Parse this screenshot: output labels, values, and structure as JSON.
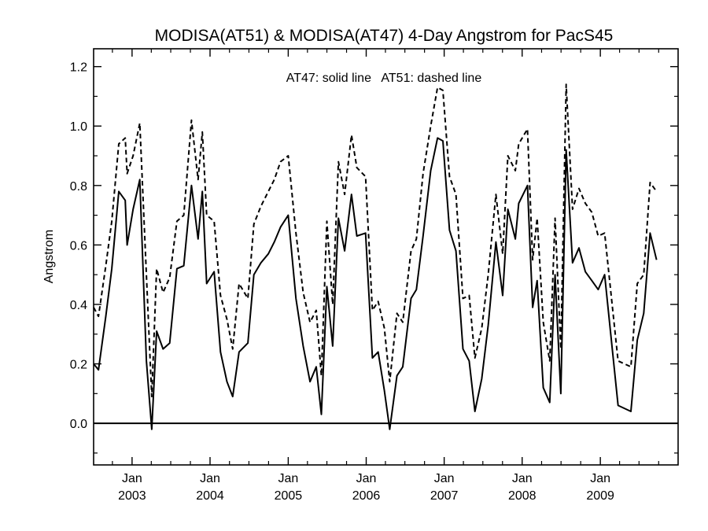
{
  "chart_data": {
    "type": "line",
    "title": "MODISA(AT51) & MODISA(AT47) 4-Day Angstrom for PacS45",
    "annotation": "AT47: solid line   AT51: dashed line",
    "xlabel": "",
    "ylabel": "Angstrom",
    "xlim": [
      "2002-07-05",
      "2009-12-31"
    ],
    "ylim": [
      -0.14,
      1.26
    ],
    "y_ticks": [
      0.0,
      0.2,
      0.4,
      0.6,
      0.8,
      1.0,
      1.2
    ],
    "y_tick_labels": [
      "0.0",
      "0.2",
      "0.4",
      "0.6",
      "0.8",
      "1.0",
      "1.2"
    ],
    "x_ticks": [
      {
        "date": "2003-01-01",
        "month": "Jan",
        "year": "2003"
      },
      {
        "date": "2004-01-01",
        "month": "Jan",
        "year": "2004"
      },
      {
        "date": "2005-01-01",
        "month": "Jan",
        "year": "2005"
      },
      {
        "date": "2006-01-01",
        "month": "Jan",
        "year": "2006"
      },
      {
        "date": "2007-01-01",
        "month": "Jan",
        "year": "2007"
      },
      {
        "date": "2008-01-01",
        "month": "Jan",
        "year": "2008"
      },
      {
        "date": "2009-01-01",
        "month": "Jan",
        "year": "2009"
      }
    ],
    "reference_line": 0.0,
    "grid": false,
    "series": [
      {
        "name": "AT47",
        "style": "solid",
        "color": "#000000",
        "points": [
          [
            "2002-07-05",
            0.2
          ],
          [
            "2002-07-28",
            0.18
          ],
          [
            "2002-08-31",
            0.36
          ],
          [
            "2002-09-28",
            0.52
          ],
          [
            "2002-10-31",
            0.78
          ],
          [
            "2002-11-30",
            0.75
          ],
          [
            "2002-12-09",
            0.6
          ],
          [
            "2003-01-06",
            0.72
          ],
          [
            "2003-02-06",
            0.82
          ],
          [
            "2003-03-09",
            0.21
          ],
          [
            "2003-04-03",
            -0.02
          ],
          [
            "2003-04-26",
            0.31
          ],
          [
            "2003-05-26",
            0.25
          ],
          [
            "2003-06-26",
            0.27
          ],
          [
            "2003-07-30",
            0.52
          ],
          [
            "2003-08-31",
            0.53
          ],
          [
            "2003-10-06",
            0.8
          ],
          [
            "2003-11-06",
            0.62
          ],
          [
            "2003-11-26",
            0.78
          ],
          [
            "2003-12-16",
            0.47
          ],
          [
            "2004-01-20",
            0.51
          ],
          [
            "2004-02-19",
            0.24
          ],
          [
            "2004-03-20",
            0.14
          ],
          [
            "2004-04-16",
            0.09
          ],
          [
            "2004-05-16",
            0.24
          ],
          [
            "2004-06-26",
            0.27
          ],
          [
            "2004-07-24",
            0.5
          ],
          [
            "2004-08-26",
            0.54
          ],
          [
            "2004-09-30",
            0.57
          ],
          [
            "2004-10-28",
            0.61
          ],
          [
            "2004-11-26",
            0.66
          ],
          [
            "2005-01-01",
            0.7
          ],
          [
            "2005-02-06",
            0.42
          ],
          [
            "2005-03-12",
            0.26
          ],
          [
            "2005-04-13",
            0.14
          ],
          [
            "2005-05-12",
            0.19
          ],
          [
            "2005-06-05",
            0.03
          ],
          [
            "2005-07-01",
            0.46
          ],
          [
            "2005-07-28",
            0.26
          ],
          [
            "2005-08-24",
            0.69
          ],
          [
            "2005-09-22",
            0.58
          ],
          [
            "2005-10-24",
            0.77
          ],
          [
            "2005-11-18",
            0.63
          ],
          [
            "2005-12-29",
            0.64
          ],
          [
            "2006-01-30",
            0.22
          ],
          [
            "2006-02-26",
            0.24
          ],
          [
            "2006-03-27",
            0.11
          ],
          [
            "2006-04-21",
            -0.02
          ],
          [
            "2006-05-25",
            0.16
          ],
          [
            "2006-06-21",
            0.19
          ],
          [
            "2006-07-30",
            0.42
          ],
          [
            "2006-08-24",
            0.45
          ],
          [
            "2006-09-24",
            0.63
          ],
          [
            "2006-10-30",
            0.85
          ],
          [
            "2006-12-01",
            0.96
          ],
          [
            "2006-12-26",
            0.95
          ],
          [
            "2007-01-26",
            0.65
          ],
          [
            "2007-02-25",
            0.58
          ],
          [
            "2007-03-30",
            0.25
          ],
          [
            "2007-04-28",
            0.21
          ],
          [
            "2007-05-25",
            0.04
          ],
          [
            "2007-06-26",
            0.15
          ],
          [
            "2007-07-26",
            0.33
          ],
          [
            "2007-08-31",
            0.61
          ],
          [
            "2007-10-02",
            0.43
          ],
          [
            "2007-10-26",
            0.72
          ],
          [
            "2007-11-30",
            0.62
          ],
          [
            "2007-12-16",
            0.74
          ],
          [
            "2008-01-26",
            0.8
          ],
          [
            "2008-02-19",
            0.39
          ],
          [
            "2008-03-11",
            0.48
          ],
          [
            "2008-04-09",
            0.12
          ],
          [
            "2008-05-09",
            0.07
          ],
          [
            "2008-06-03",
            0.5
          ],
          [
            "2008-06-30",
            0.1
          ],
          [
            "2008-07-25",
            0.92
          ],
          [
            "2008-08-24",
            0.54
          ],
          [
            "2008-09-23",
            0.59
          ],
          [
            "2008-10-23",
            0.51
          ],
          [
            "2008-11-22",
            0.48
          ],
          [
            "2008-12-22",
            0.45
          ],
          [
            "2009-01-21",
            0.5
          ],
          [
            "2009-03-25",
            0.06
          ],
          [
            "2009-05-24",
            0.04
          ],
          [
            "2009-06-23",
            0.28
          ],
          [
            "2009-07-23",
            0.37
          ],
          [
            "2009-08-22",
            0.64
          ],
          [
            "2009-09-21",
            0.55
          ]
        ]
      },
      {
        "name": "AT51",
        "style": "dashed",
        "color": "#000000",
        "points": [
          [
            "2002-07-05",
            0.39
          ],
          [
            "2002-07-28",
            0.36
          ],
          [
            "2002-08-31",
            0.53
          ],
          [
            "2002-09-28",
            0.68
          ],
          [
            "2002-10-31",
            0.94
          ],
          [
            "2002-11-30",
            0.96
          ],
          [
            "2002-12-09",
            0.84
          ],
          [
            "2003-01-06",
            0.9
          ],
          [
            "2003-02-06",
            1.01
          ],
          [
            "2003-03-09",
            0.5
          ],
          [
            "2003-04-03",
            0.09
          ],
          [
            "2003-04-26",
            0.52
          ],
          [
            "2003-05-26",
            0.44
          ],
          [
            "2003-06-26",
            0.49
          ],
          [
            "2003-07-30",
            0.68
          ],
          [
            "2003-08-31",
            0.7
          ],
          [
            "2003-10-06",
            1.02
          ],
          [
            "2003-11-06",
            0.82
          ],
          [
            "2003-11-26",
            0.98
          ],
          [
            "2003-12-16",
            0.7
          ],
          [
            "2004-01-20",
            0.68
          ],
          [
            "2004-02-19",
            0.43
          ],
          [
            "2004-03-20",
            0.35
          ],
          [
            "2004-04-16",
            0.25
          ],
          [
            "2004-05-16",
            0.47
          ],
          [
            "2004-06-26",
            0.42
          ],
          [
            "2004-07-24",
            0.67
          ],
          [
            "2004-08-26",
            0.73
          ],
          [
            "2004-09-30",
            0.78
          ],
          [
            "2004-10-28",
            0.82
          ],
          [
            "2004-11-26",
            0.88
          ],
          [
            "2005-01-01",
            0.9
          ],
          [
            "2005-02-06",
            0.64
          ],
          [
            "2005-03-12",
            0.44
          ],
          [
            "2005-04-13",
            0.34
          ],
          [
            "2005-05-12",
            0.38
          ],
          [
            "2005-06-05",
            0.16
          ],
          [
            "2005-07-01",
            0.68
          ],
          [
            "2005-07-28",
            0.4
          ],
          [
            "2005-08-24",
            0.88
          ],
          [
            "2005-09-22",
            0.77
          ],
          [
            "2005-10-24",
            0.97
          ],
          [
            "2005-11-18",
            0.86
          ],
          [
            "2005-12-29",
            0.83
          ],
          [
            "2006-01-30",
            0.38
          ],
          [
            "2006-02-26",
            0.41
          ],
          [
            "2006-03-27",
            0.32
          ],
          [
            "2006-04-21",
            0.14
          ],
          [
            "2006-05-25",
            0.37
          ],
          [
            "2006-06-21",
            0.34
          ],
          [
            "2006-07-30",
            0.58
          ],
          [
            "2006-08-24",
            0.62
          ],
          [
            "2006-09-24",
            0.84
          ],
          [
            "2006-10-30",
            1.0
          ],
          [
            "2006-12-01",
            1.13
          ],
          [
            "2006-12-26",
            1.12
          ],
          [
            "2007-01-26",
            0.83
          ],
          [
            "2007-02-25",
            0.77
          ],
          [
            "2007-03-30",
            0.42
          ],
          [
            "2007-04-28",
            0.43
          ],
          [
            "2007-05-25",
            0.22
          ],
          [
            "2007-06-26",
            0.32
          ],
          [
            "2007-07-26",
            0.5
          ],
          [
            "2007-08-31",
            0.77
          ],
          [
            "2007-10-02",
            0.57
          ],
          [
            "2007-10-26",
            0.9
          ],
          [
            "2007-11-30",
            0.85
          ],
          [
            "2007-12-16",
            0.94
          ],
          [
            "2008-01-26",
            0.99
          ],
          [
            "2008-02-19",
            0.55
          ],
          [
            "2008-03-11",
            0.69
          ],
          [
            "2008-04-09",
            0.34
          ],
          [
            "2008-05-09",
            0.21
          ],
          [
            "2008-06-03",
            0.69
          ],
          [
            "2008-06-30",
            0.25
          ],
          [
            "2008-07-25",
            1.14
          ],
          [
            "2008-08-24",
            0.72
          ],
          [
            "2008-09-23",
            0.79
          ],
          [
            "2008-10-23",
            0.74
          ],
          [
            "2008-11-22",
            0.71
          ],
          [
            "2008-12-22",
            0.63
          ],
          [
            "2009-01-21",
            0.64
          ],
          [
            "2009-03-25",
            0.21
          ],
          [
            "2009-05-24",
            0.19
          ],
          [
            "2009-06-23",
            0.47
          ],
          [
            "2009-07-23",
            0.5
          ],
          [
            "2009-08-22",
            0.81
          ],
          [
            "2009-09-21",
            0.78
          ]
        ]
      }
    ]
  }
}
